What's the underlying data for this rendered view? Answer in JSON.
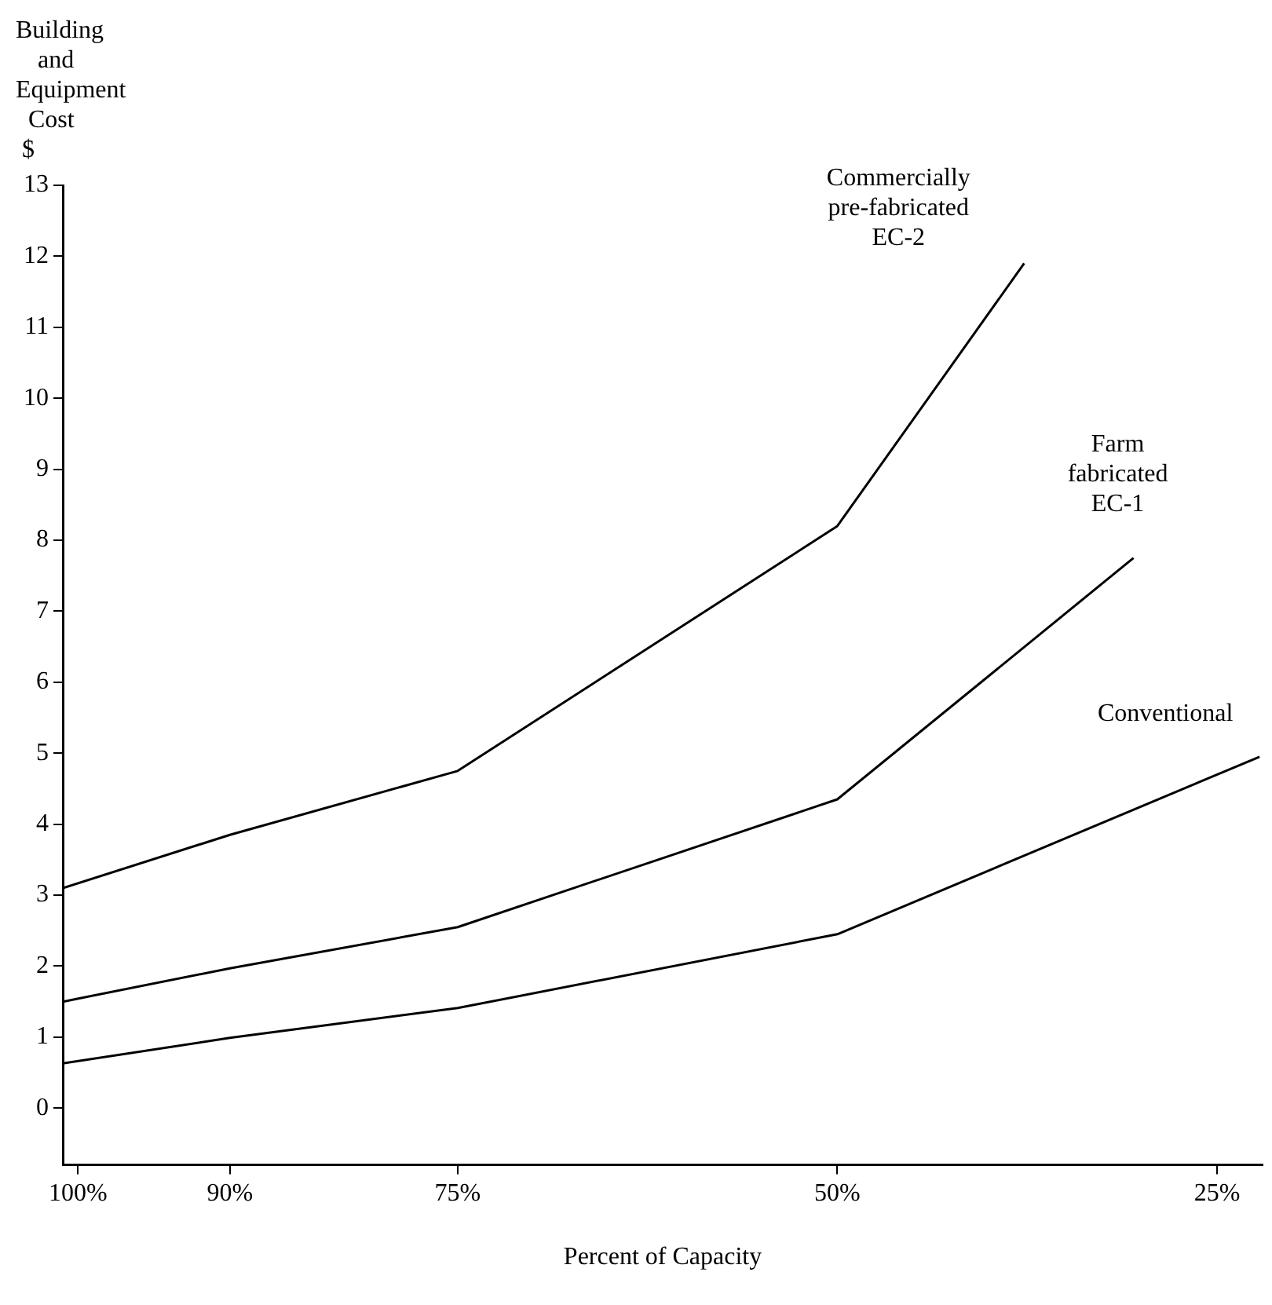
{
  "chart_data": {
    "type": "line",
    "ylabel": "Building\nand\nEquipment\nCost\n$",
    "xlabel": "Percent of Capacity",
    "xlim": [
      101,
      22
    ],
    "xticks": [
      {
        "value": 100,
        "label": "100%"
      },
      {
        "value": 90,
        "label": "90%"
      },
      {
        "value": 75,
        "label": "75%"
      },
      {
        "value": 50,
        "label": "50%"
      },
      {
        "value": 25,
        "label": "25%"
      }
    ],
    "ylim": [
      -0.8,
      13
    ],
    "yticks": [
      0,
      1,
      2,
      3,
      4,
      5,
      6,
      7,
      8,
      9,
      10,
      11,
      12,
      13
    ],
    "grid": false,
    "legend": false,
    "marker": "none",
    "line_style": "solid",
    "series": [
      {
        "name": "Commercially\npre-fabricated\nEC-2",
        "color": "#000000",
        "x": [
          101,
          90,
          75,
          50,
          37.7
        ],
        "values": [
          3.1,
          3.85,
          4.75,
          8.2,
          11.9
        ]
      },
      {
        "name": "Farm\nfabricated\nEC-1",
        "color": "#000000",
        "x": [
          101,
          90,
          75,
          50,
          30.5
        ],
        "values": [
          1.5,
          1.97,
          2.55,
          4.35,
          7.75
        ]
      },
      {
        "name": "Conventional",
        "color": "#000000",
        "x": [
          101,
          90,
          75,
          50,
          22.2
        ],
        "values": [
          0.63,
          0.99,
          1.41,
          2.45,
          4.95
        ]
      }
    ]
  }
}
